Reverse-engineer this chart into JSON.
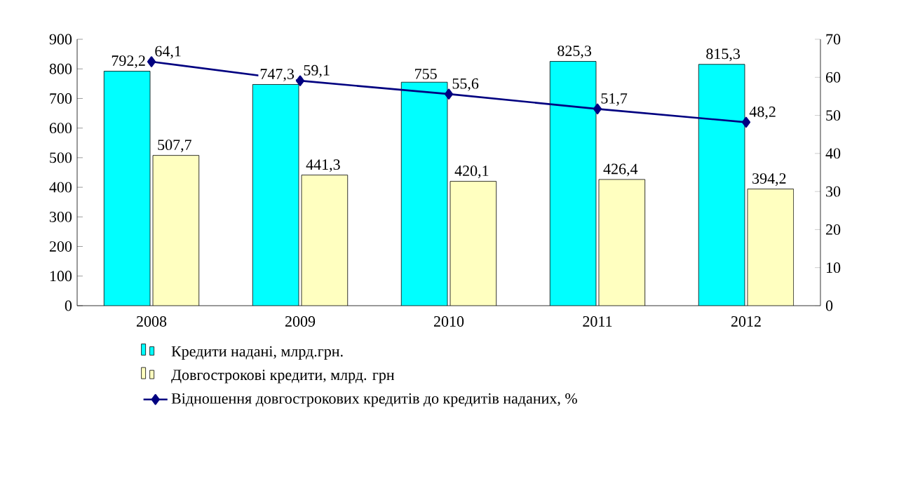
{
  "chart_data": {
    "type": "bar",
    "categories": [
      "2008",
      "2009",
      "2010",
      "2011",
      "2012"
    ],
    "series": [
      {
        "name": "Кредити надані, млрд.грн.",
        "color": "#00ffff",
        "values": [
          792.2,
          747.3,
          755,
          825.3,
          815.3
        ],
        "value_labels": [
          "792,2",
          "747,3",
          "755",
          "825,3",
          "815,3"
        ]
      },
      {
        "name": "Довгострокові кредити, млрд. грн",
        "color": "#ffffc0",
        "values": [
          507.7,
          441.3,
          420.1,
          426.4,
          394.2
        ],
        "value_labels": [
          "507,7",
          "441,3",
          "420,1",
          "426,4",
          "394,2"
        ]
      },
      {
        "name": "Відношення довгострокових кредитів до кредитів наданих, %",
        "type": "line",
        "axis": "y2",
        "color": "#000080",
        "marker": "diamond",
        "line_style": "solid",
        "values": [
          64.1,
          59.1,
          55.6,
          51.7,
          48.2
        ],
        "value_labels": [
          "64,1",
          "59,1",
          "55,6",
          "51,7",
          "48,2"
        ]
      }
    ],
    "ylim": [
      0,
      900
    ],
    "yticks": [
      0,
      100,
      200,
      300,
      400,
      500,
      600,
      700,
      800,
      900
    ],
    "y2lim": [
      0,
      70
    ],
    "y2ticks": [
      0,
      10,
      20,
      30,
      40,
      50,
      60,
      70
    ],
    "legend": "bottom",
    "grid": false
  }
}
